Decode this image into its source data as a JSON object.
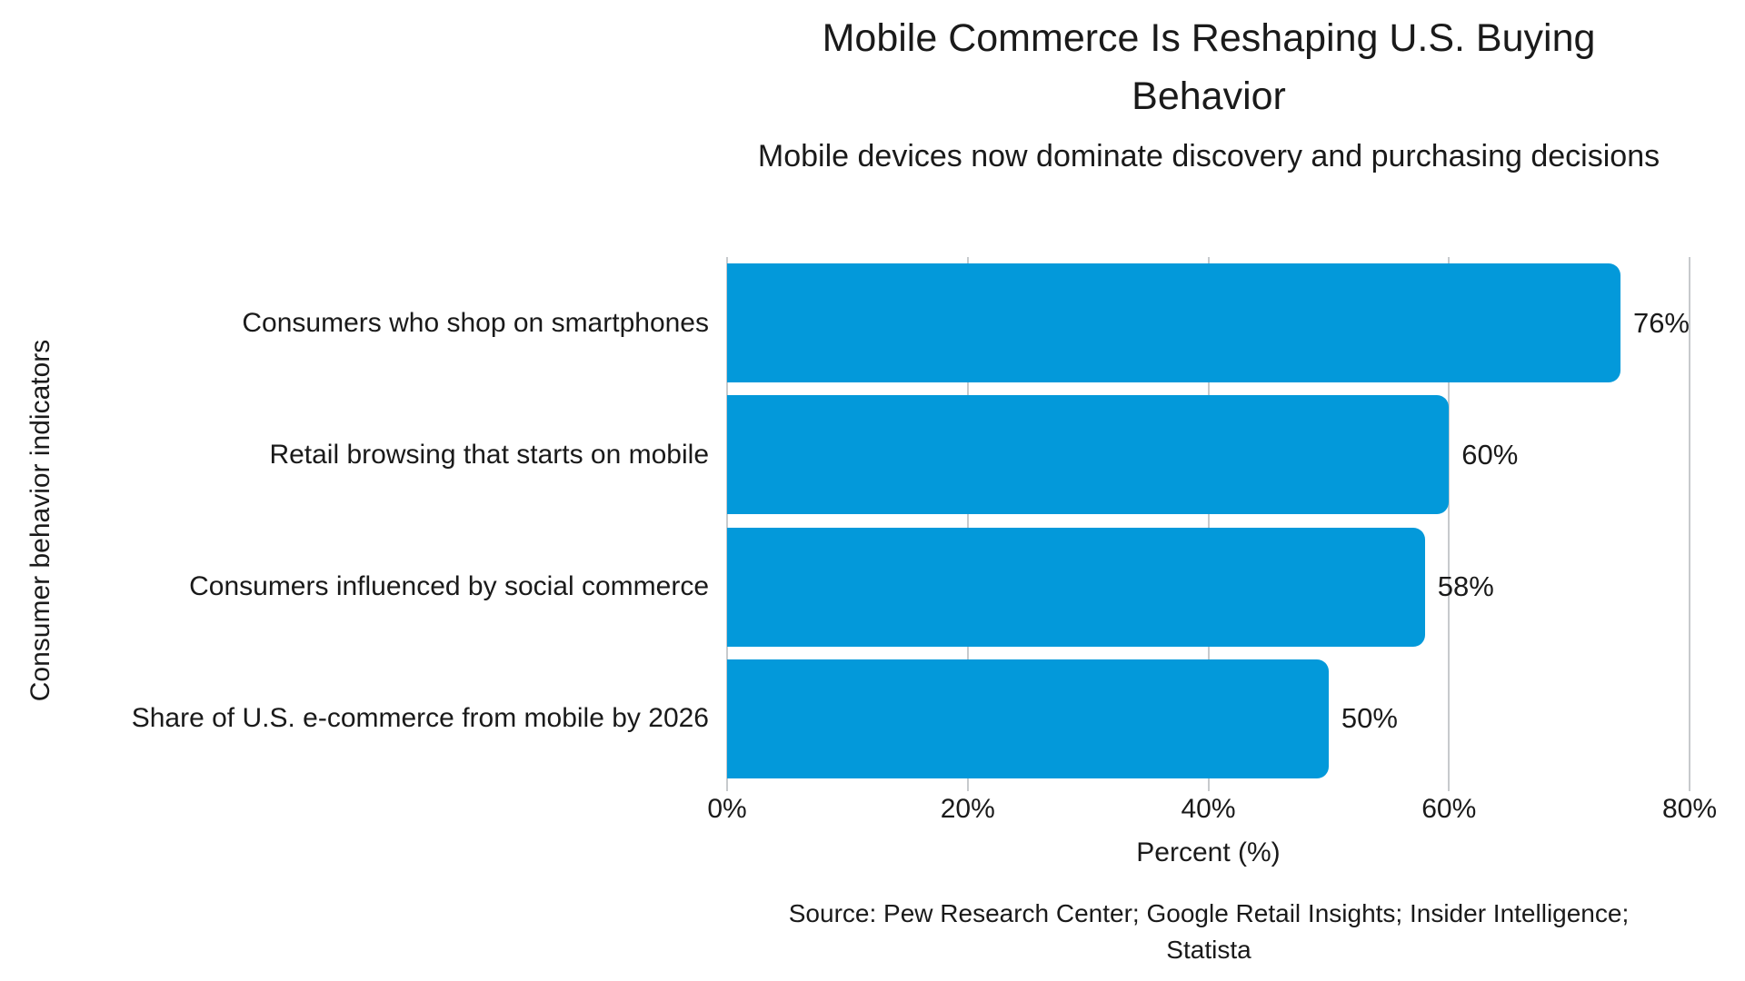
{
  "header": {
    "title": "Mobile Commerce Is Reshaping U.S. Buying Behavior",
    "subtitle": "Mobile devices now dominate discovery and purchasing decisions"
  },
  "chart_data": {
    "type": "bar",
    "orientation": "horizontal",
    "title": "Mobile Commerce Is Reshaping U.S. Buying Behavior",
    "subtitle": "Mobile devices now dominate discovery and purchasing decisions",
    "categories": [
      "Consumers who shop on smartphones",
      "Retail browsing that starts on mobile",
      "Consumers influenced by social commerce",
      "Share of U.S. e-commerce from mobile by 2026"
    ],
    "values": [
      76,
      60,
      58,
      50
    ],
    "value_labels": [
      "76%",
      "60%",
      "58%",
      "50%"
    ],
    "xlabel": "Percent (%)",
    "ylabel": "Consumer behavior indicators",
    "xlim": [
      0,
      80
    ],
    "x_tick_values": [
      0,
      20,
      40,
      60,
      80
    ],
    "x_tick_labels": [
      "0%",
      "20%",
      "40%",
      "60%",
      "80%"
    ],
    "grid": "vertical-gridlines-behind-bars",
    "legend": "none",
    "colors": {
      "bar": "#0399DA",
      "gridline": "#c7cacd",
      "text": "#1a1a1a",
      "background": "#ffffff"
    }
  },
  "footer": {
    "source": "Source: Pew Research Center; Google Retail Insights; Insider Intelligence; Statista"
  }
}
